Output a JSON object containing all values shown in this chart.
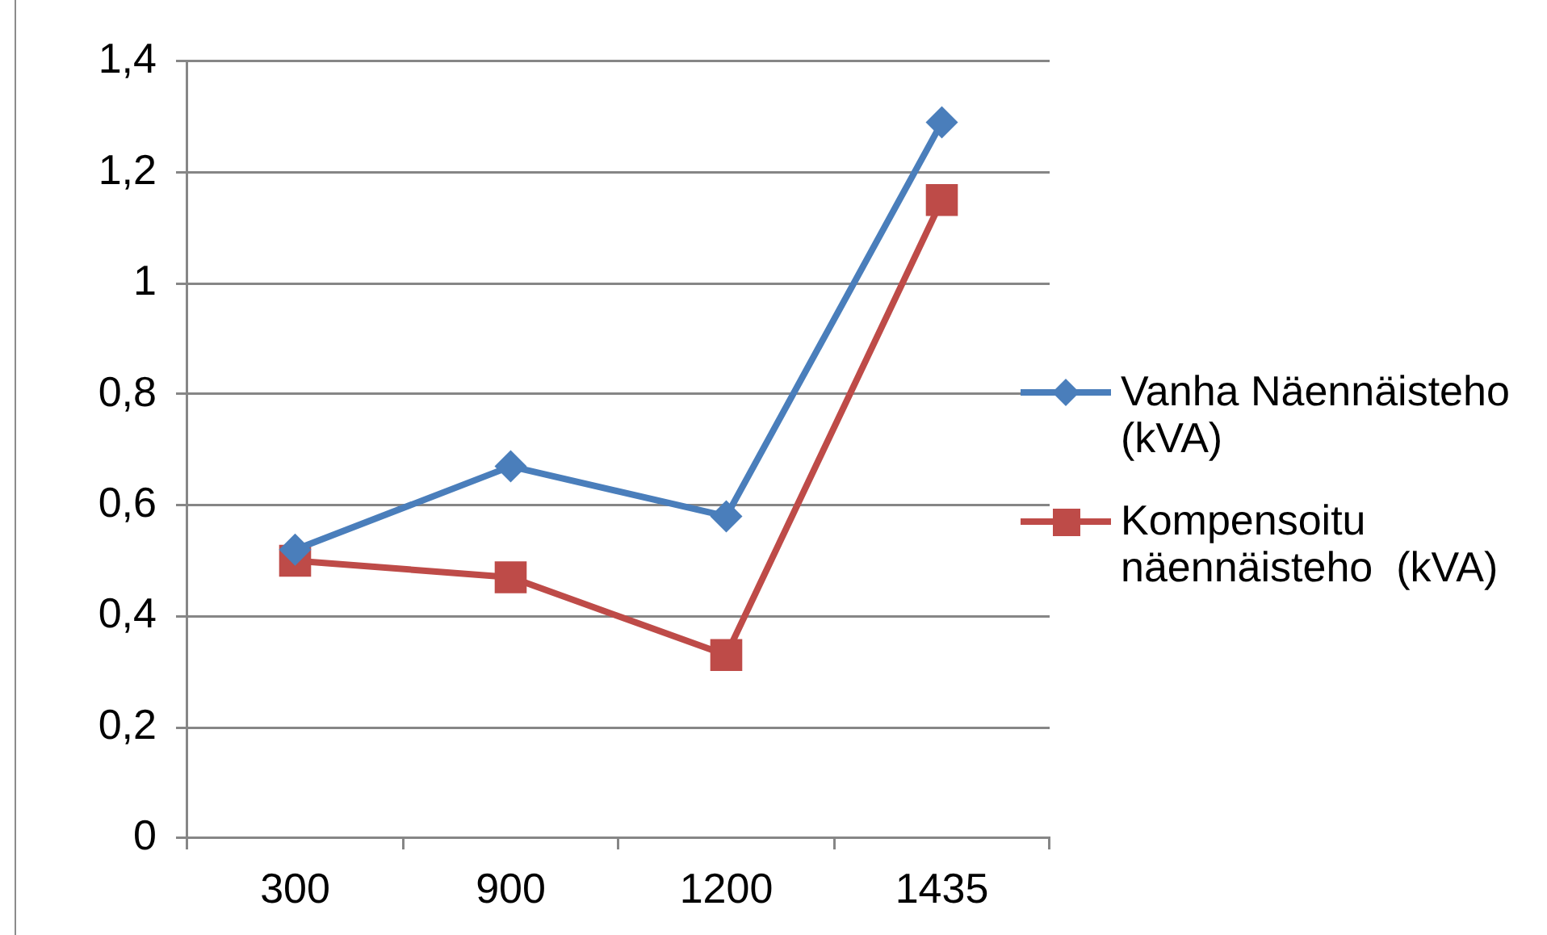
{
  "chart_data": {
    "type": "line",
    "categories": [
      "300",
      "900",
      "1200",
      "1435"
    ],
    "series": [
      {
        "name": "Vanha Näennäisteho (kVA)",
        "color": "#4a7ebb",
        "marker": "diamond",
        "values": [
          0.52,
          0.67,
          0.58,
          1.29
        ]
      },
      {
        "name": "Kompensoitu näennäisteho  (kVA)",
        "color": "#be4b48",
        "marker": "square",
        "values": [
          0.5,
          0.47,
          0.33,
          1.15
        ]
      }
    ],
    "ylim": [
      0,
      1.4
    ],
    "yticks": [
      0,
      {
        "value": 0.2,
        "label": "0,2"
      },
      {
        "value": 0.4,
        "label": "0,4"
      },
      {
        "value": 0.6,
        "label": "0,6"
      },
      {
        "value": 0.8,
        "label": "0,8"
      },
      1,
      {
        "value": 1.2,
        "label": "1,2"
      },
      {
        "value": 1.4,
        "label": "1,4"
      }
    ],
    "grid": "y",
    "legend": "right"
  }
}
